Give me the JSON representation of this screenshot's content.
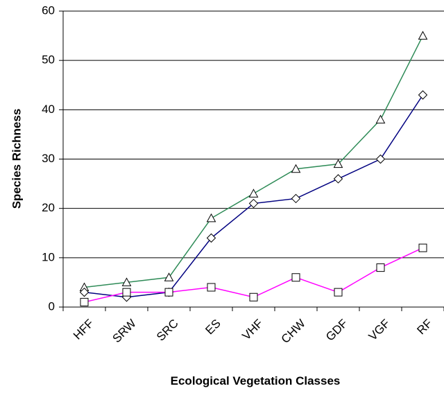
{
  "chart_data": {
    "type": "line",
    "x_label": "Ecological Vegetation Classes",
    "y_label": "Species Richness",
    "categories": [
      "HFF",
      "SRW",
      "SRC",
      "ES",
      "VHF",
      "CHW",
      "GDF",
      "VGF",
      "RF"
    ],
    "series": [
      {
        "color": "#2e8b57",
        "marker": "triangle",
        "values": [
          4,
          5,
          6,
          18,
          23,
          28,
          29,
          38,
          55
        ]
      },
      {
        "color": "#000080",
        "marker": "diamond",
        "values": [
          3,
          2,
          3,
          14,
          21,
          22,
          26,
          30,
          43
        ]
      },
      {
        "color": "#ff00ff",
        "marker": "square",
        "values": [
          1,
          3,
          3,
          4,
          2,
          6,
          3,
          8,
          12
        ]
      }
    ],
    "ylim": [
      0,
      60
    ],
    "yticks": [
      0,
      10,
      20,
      30,
      40,
      50,
      60
    ],
    "grid": true
  }
}
